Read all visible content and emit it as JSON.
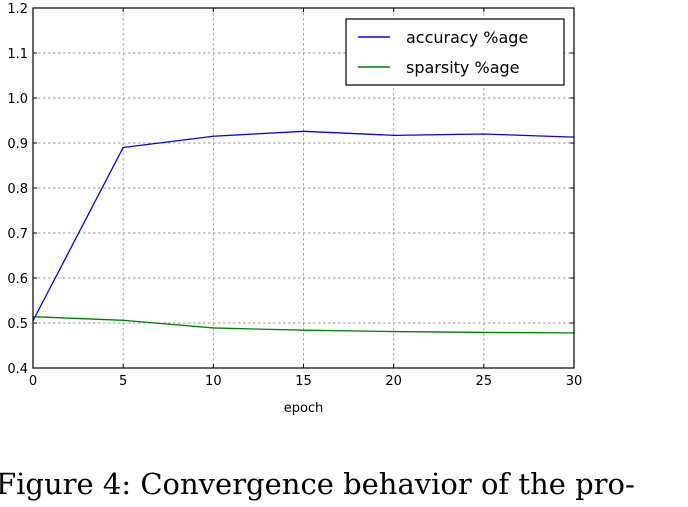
{
  "chart_data": {
    "type": "line",
    "title": "",
    "xlabel": "epoch",
    "ylabel": "",
    "xlim": [
      0,
      30
    ],
    "ylim": [
      0.4,
      1.2
    ],
    "xticks": [
      "0",
      "5",
      "10",
      "15",
      "20",
      "25",
      "30"
    ],
    "yticks": [
      "0.4",
      "0.5",
      "0.6",
      "0.7",
      "0.8",
      "0.9",
      "1.0",
      "1.1",
      "1.2"
    ],
    "x": [
      0,
      5,
      10,
      15,
      20,
      25,
      30
    ],
    "series": [
      {
        "name": "accuracy %age",
        "color": "#0000ff",
        "values": [
          0.505,
          0.89,
          0.915,
          0.926,
          0.917,
          0.92,
          0.913
        ]
      },
      {
        "name": "sparsity %age",
        "color": "#008000",
        "values": [
          0.514,
          0.506,
          0.489,
          0.484,
          0.481,
          0.479,
          0.478
        ]
      }
    ],
    "grid": true,
    "legend_position": "top-right"
  },
  "caption": "Figure 4:  Convergence behavior of the pro-"
}
